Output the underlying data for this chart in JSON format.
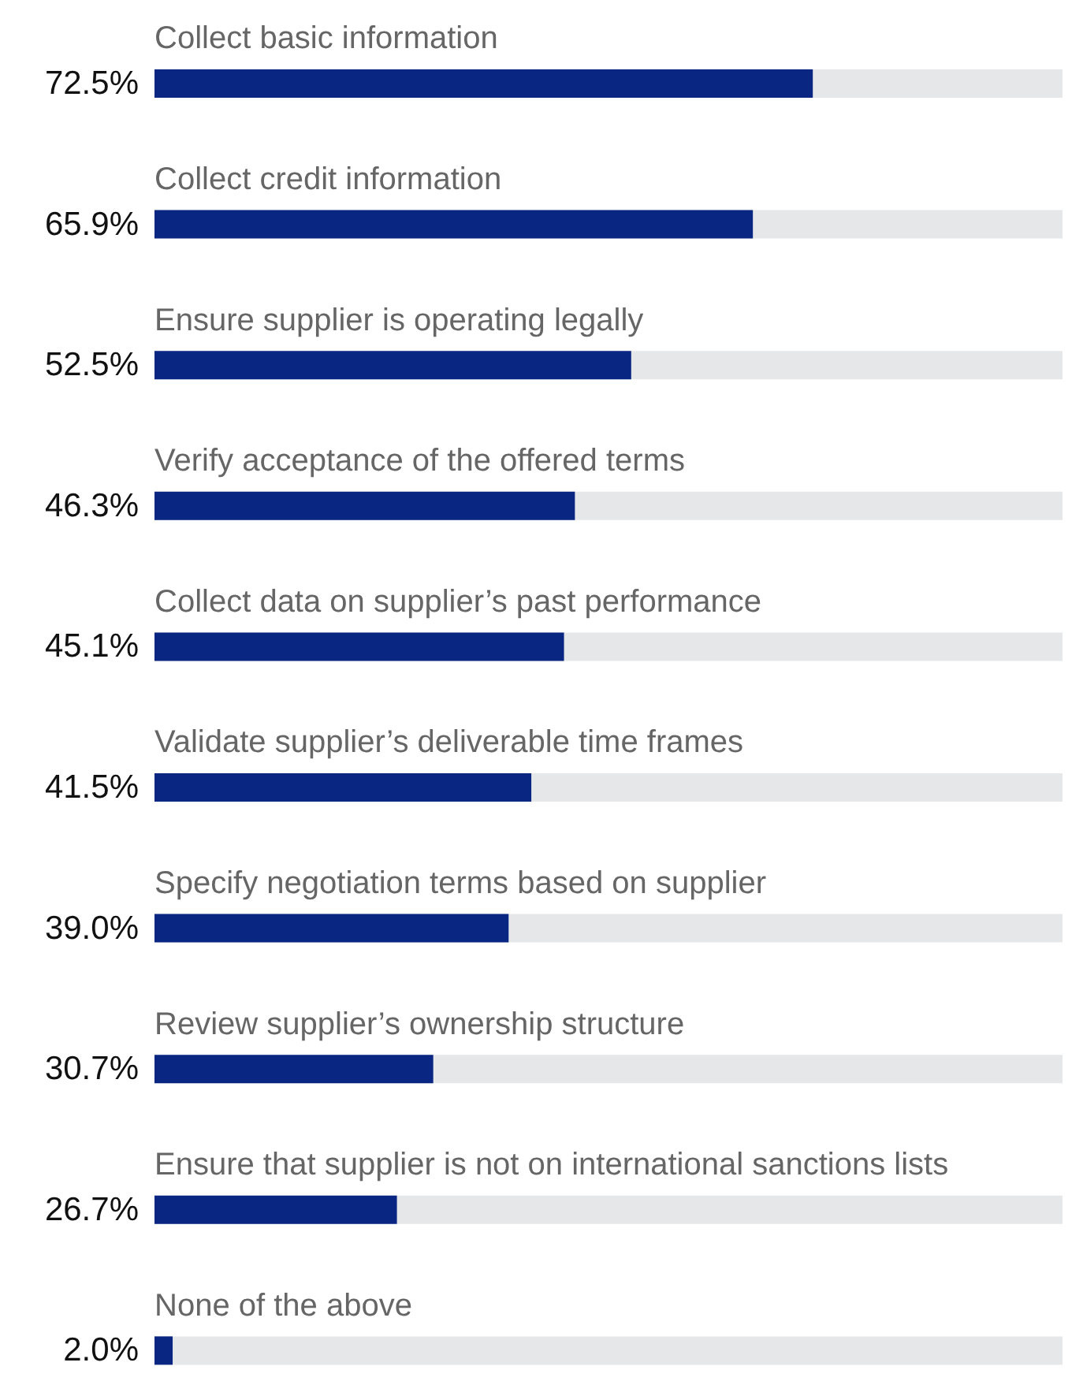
{
  "chart_data": {
    "type": "bar",
    "orientation": "horizontal",
    "categories": [
      "Collect basic information",
      "Collect credit information",
      "Ensure supplier is operating legally",
      "Verify acceptance of the offered terms",
      "Collect data on supplier’s past performance",
      "Validate supplier’s deliverable time frames",
      "Specify negotiation terms based on supplier",
      "Review supplier’s ownership structure",
      "Ensure that supplier is not on international sanctions lists",
      "None of the above"
    ],
    "values": [
      72.5,
      65.9,
      52.5,
      46.3,
      45.1,
      41.5,
      39.0,
      30.7,
      26.7,
      2.0
    ],
    "value_labels": [
      "72.5%",
      "65.9%",
      "52.5%",
      "46.3%",
      "45.1%",
      "41.5%",
      "39.0%",
      "30.7%",
      "26.7%",
      "2.0%"
    ],
    "color": "#0a2683",
    "xlim": [
      0,
      100
    ]
  }
}
